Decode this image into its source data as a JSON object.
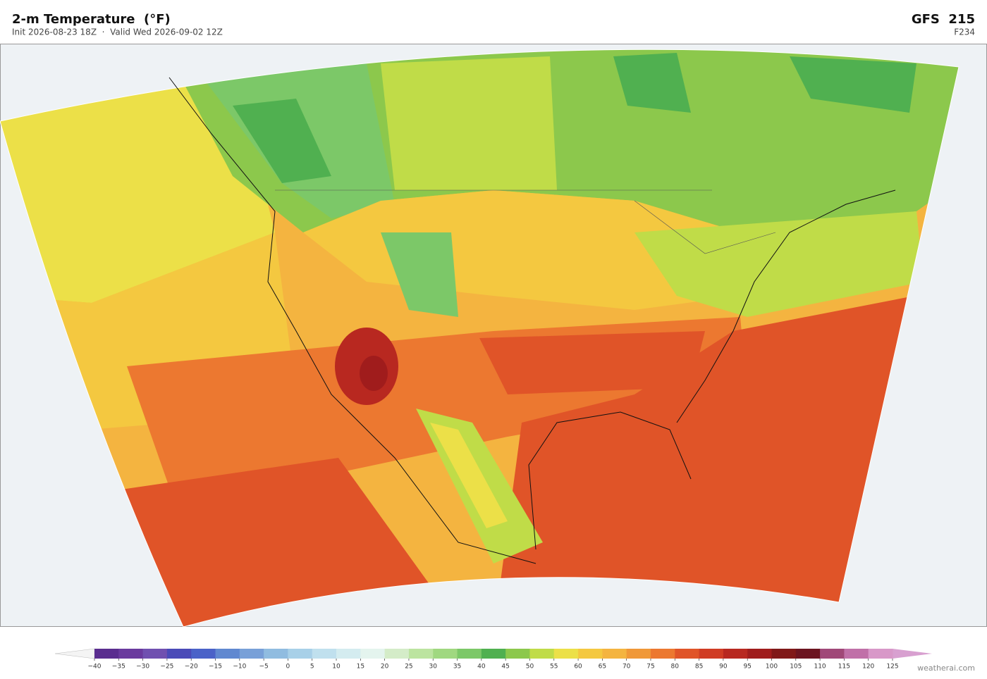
{
  "header": {
    "title": "2-m Temperature  (°F)",
    "subtitle": "Init 2026-08-23 18Z  ·  Valid Wed 2026-09-02 12Z",
    "model": "GFS  215",
    "forecast_hour": "F234"
  },
  "colorbar": {
    "ticks": [
      {
        "value": -40,
        "label": "−40"
      },
      {
        "value": -35,
        "label": "−35"
      },
      {
        "value": -30,
        "label": "−30"
      },
      {
        "value": -25,
        "label": "−25"
      },
      {
        "value": -20,
        "label": "−20"
      },
      {
        "value": -15,
        "label": "−15"
      },
      {
        "value": -10,
        "label": "−10"
      },
      {
        "value": -5,
        "label": "−5"
      },
      0,
      5,
      10,
      15,
      20,
      25,
      30,
      35,
      40,
      45,
      50,
      55,
      60,
      65,
      70,
      75,
      80,
      85,
      90,
      95,
      100,
      105,
      110,
      115,
      120,
      125
    ],
    "colors": [
      "#5a2d8f",
      "#6a3a9e",
      "#7050b0",
      "#4a4ab8",
      "#4a62c8",
      "#6088d0",
      "#78a0d8",
      "#90bce0",
      "#a8d0e8",
      "#c0e0ee",
      "#d4ecf0",
      "#e4f4ee",
      "#d4ecc8",
      "#bce4a0",
      "#a0d880",
      "#7cc868",
      "#50b050",
      "#8cc84c",
      "#c0dc48",
      "#ece048",
      "#f4c840",
      "#f4b440",
      "#f09838",
      "#ec7830",
      "#e05428",
      "#d03c24",
      "#b82820",
      "#a01c1c",
      "#801818",
      "#6c1420",
      "#a04878",
      "#c070a8",
      "#d898c8"
    ],
    "under_color": "#f4f4f4",
    "over_color": "#d8a0d0"
  },
  "credit": "weatherai.com"
}
